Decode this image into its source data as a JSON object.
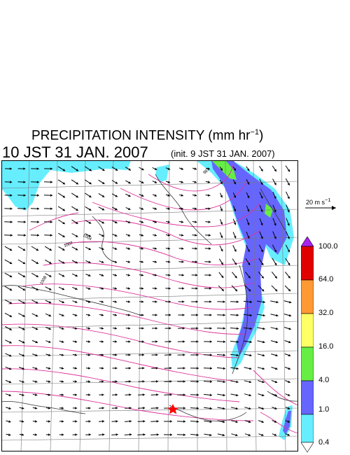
{
  "title": {
    "main": "PRECIPITATION INTENSITY (mm hr",
    "sup": "−1",
    "close": ")",
    "valid_time": "10 JST 31 JAN. 2007",
    "init": "(init. 9 JST 31 JAN. 2007)"
  },
  "reference_vector": {
    "label": "20 m s",
    "sup": "−1"
  },
  "colorbar": {
    "labels": [
      "100.0",
      "64.0",
      "32.0",
      "16.0",
      "4.0",
      "1.0",
      "0.4"
    ],
    "colors": [
      "#e00000",
      "#ff9933",
      "#ffff66",
      "#66ee44",
      "#6666ff",
      "#66eeff"
    ],
    "over_color": "#aa22ee",
    "under_color": "#ffffff"
  },
  "map": {
    "precip_cyan": "#66eeff",
    "precip_blue": "#6666ff",
    "precip_green": "#66ee44",
    "contour_color": "#dd3399",
    "contour_labels": [
      "987",
      "1004",
      "1007",
      "1008"
    ],
    "marker_color": "#ff0000"
  }
}
